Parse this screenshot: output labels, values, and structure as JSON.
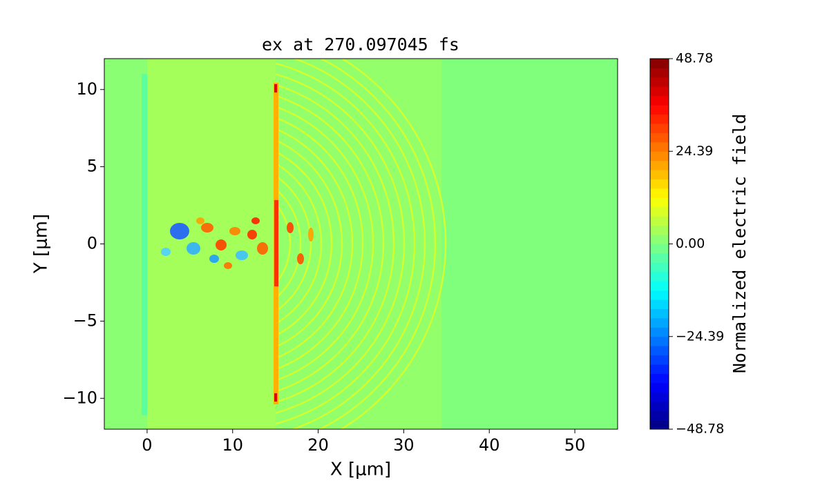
{
  "chart_data": {
    "type": "heatmap",
    "title": "ex at 270.097045 fs",
    "x_label": "X [μm]",
    "y_label": "Y [μm]",
    "xlim": [
      -5,
      55
    ],
    "xticks": [
      0,
      10,
      20,
      30,
      40,
      50
    ],
    "ylim": [
      -12,
      12
    ],
    "yticks": [
      {
        "value": -10,
        "label": "−10"
      },
      {
        "value": -5,
        "label": "−5"
      },
      0,
      5,
      10
    ],
    "colormap": "jet",
    "clim": [
      -48.78,
      48.78
    ],
    "colorbar_label": "Normalized electric field",
    "colorbar_ticks": [
      {
        "value": -48.78,
        "label": "−48.78"
      },
      {
        "value": -24.39,
        "label": "−24.39"
      },
      {
        "value": 0,
        "label": "0.00"
      },
      24.39,
      48.78
    ]
  }
}
